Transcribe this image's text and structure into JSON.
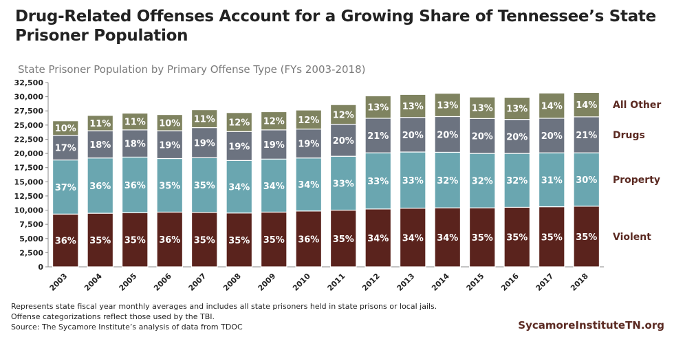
{
  "title": "Drug-Related Offenses Account for a Growing Share of Tennessee’s State Prisoner Population",
  "subtitle": "State Prisoner Population by Primary Offense Type (FYs 2003-2018)",
  "notes": [
    "Represents state fiscal year monthly averages and includes all state prisoners held in state prisons or local jails.",
    "Offense categorizations reflect those used by the TBI.",
    "Source: The Sycamore Institute’s analysis of data from TDOC"
  ],
  "brand": "SycamoreInstituteTN.org",
  "chart_data": {
    "type": "bar",
    "stacked": true,
    "categories": [
      "2003",
      "2004",
      "2005",
      "2006",
      "2007",
      "2008",
      "2009",
      "2010",
      "2011",
      "2012",
      "2013",
      "2014",
      "2015",
      "2016",
      "2017",
      "2018"
    ],
    "ylim": [
      0,
      32500
    ],
    "yticks": [
      "0",
      "2,500",
      "5,000",
      "7,500",
      "10,000",
      "12,500",
      "15,000",
      "17,500",
      "20,000",
      "22,500",
      "25,000",
      "27,500",
      "30,000",
      "32,500"
    ],
    "grid": false,
    "legend_placement": "right",
    "series": [
      {
        "name": "Violent",
        "color": "#5a231d",
        "values": [
          9300,
          9450,
          9550,
          9650,
          9600,
          9500,
          9650,
          9850,
          10000,
          10200,
          10350,
          10400,
          10400,
          10500,
          10600,
          10700
        ],
        "labels": [
          "36%",
          "35%",
          "35%",
          "36%",
          "35%",
          "35%",
          "35%",
          "36%",
          "35%",
          "34%",
          "34%",
          "34%",
          "35%",
          "35%",
          "35%",
          "35%"
        ]
      },
      {
        "name": "Property",
        "color": "#6aa6b0",
        "values": [
          9550,
          9750,
          9800,
          9450,
          9650,
          9250,
          9350,
          9350,
          9500,
          9900,
          9900,
          9800,
          9600,
          9500,
          9500,
          9400
        ],
        "labels": [
          "37%",
          "36%",
          "36%",
          "35%",
          "35%",
          "34%",
          "34%",
          "34%",
          "33%",
          "33%",
          "33%",
          "32%",
          "32%",
          "32%",
          "31%",
          "30%"
        ]
      },
      {
        "name": "Drugs",
        "color": "#6c7380",
        "values": [
          4350,
          4800,
          4800,
          4900,
          5300,
          5100,
          5150,
          5100,
          5650,
          6100,
          6100,
          6300,
          6150,
          6000,
          6100,
          6350
        ],
        "labels": [
          "17%",
          "18%",
          "18%",
          "19%",
          "19%",
          "19%",
          "19%",
          "19%",
          "20%",
          "21%",
          "20%",
          "20%",
          "20%",
          "20%",
          "20%",
          "21%"
        ]
      },
      {
        "name": "All Other",
        "color": "#7f8360",
        "values": [
          2550,
          2700,
          2950,
          2850,
          3150,
          3350,
          3200,
          3350,
          3450,
          3950,
          4050,
          4100,
          3800,
          3900,
          4450,
          4300
        ],
        "labels": [
          "10%",
          "11%",
          "11%",
          "10%",
          "11%",
          "12%",
          "12%",
          "12%",
          "12%",
          "13%",
          "13%",
          "13%",
          "13%",
          "13%",
          "14%",
          "14%"
        ]
      }
    ]
  }
}
